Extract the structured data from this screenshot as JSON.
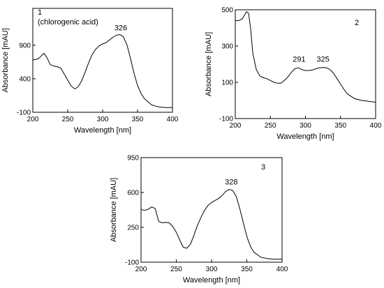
{
  "chart_data": [
    {
      "type": "line",
      "panel_label": "1",
      "annotation": "(chlorogenic acid)",
      "xlabel": "Wavelength [nm]",
      "ylabel": "Absorbance [mAU]",
      "xlim": [
        200,
        400
      ],
      "ylim": [
        -100,
        1450
      ],
      "xticks": [
        200,
        250,
        300,
        350,
        400
      ],
      "yticks": [
        -100,
        400,
        900
      ],
      "grid": false,
      "peak_labels": [
        {
          "x": 326,
          "y": 1060,
          "text": "326"
        }
      ],
      "series": [
        {
          "x": [
            200,
            205,
            208,
            212,
            216,
            220,
            225,
            230,
            235,
            240,
            245,
            250,
            255,
            260,
            265,
            270,
            275,
            280,
            285,
            290,
            295,
            300,
            305,
            310,
            315,
            320,
            325,
            330,
            335,
            340,
            345,
            350,
            355,
            360,
            370,
            380,
            390,
            400
          ],
          "y": [
            680,
            690,
            700,
            740,
            780,
            720,
            610,
            590,
            580,
            560,
            470,
            380,
            290,
            250,
            280,
            370,
            500,
            640,
            760,
            840,
            890,
            920,
            940,
            980,
            1020,
            1050,
            1060,
            1020,
            900,
            700,
            480,
            300,
            180,
            100,
            10,
            -20,
            -30,
            -30
          ]
        }
      ]
    },
    {
      "type": "line",
      "panel_label": "2",
      "xlabel": "Wavelength [nm]",
      "ylabel": "Absorbance [mAU]",
      "xlim": [
        200,
        400
      ],
      "ylim": [
        -100,
        500
      ],
      "xticks": [
        200,
        250,
        300,
        350,
        400
      ],
      "yticks": [
        -100,
        100,
        300,
        500
      ],
      "grid": false,
      "peak_labels": [
        {
          "x": 291,
          "y": 190,
          "text": "291"
        },
        {
          "x": 325,
          "y": 190,
          "text": "325"
        }
      ],
      "series": [
        {
          "x": [
            200,
            205,
            210,
            213,
            216,
            219,
            222,
            225,
            230,
            235,
            240,
            245,
            250,
            255,
            260,
            265,
            270,
            275,
            280,
            285,
            290,
            295,
            300,
            305,
            310,
            315,
            320,
            325,
            330,
            335,
            340,
            345,
            350,
            355,
            360,
            370,
            380,
            390,
            400
          ],
          "y": [
            440,
            440,
            450,
            470,
            490,
            480,
            390,
            260,
            170,
            135,
            125,
            120,
            110,
            100,
            95,
            95,
            110,
            130,
            155,
            175,
            180,
            170,
            165,
            165,
            168,
            175,
            180,
            182,
            180,
            170,
            150,
            120,
            90,
            60,
            35,
            10,
            0,
            -5,
            -10
          ]
        }
      ]
    },
    {
      "type": "line",
      "panel_label": "3",
      "xlabel": "Wavelength [nm]",
      "ylabel": "Absorbance [mAU]",
      "xlim": [
        200,
        400
      ],
      "ylim": [
        -100,
        950
      ],
      "xticks": [
        200,
        250,
        300,
        350,
        400
      ],
      "yticks": [
        -100,
        250,
        600,
        950
      ],
      "grid": false,
      "peak_labels": [
        {
          "x": 328,
          "y": 640,
          "text": "328"
        }
      ],
      "series": [
        {
          "x": [
            200,
            205,
            210,
            215,
            220,
            225,
            230,
            235,
            240,
            245,
            250,
            255,
            260,
            265,
            270,
            275,
            280,
            285,
            290,
            295,
            300,
            305,
            310,
            315,
            320,
            325,
            330,
            335,
            340,
            345,
            350,
            355,
            360,
            370,
            380,
            390,
            400
          ],
          "y": [
            430,
            420,
            430,
            455,
            440,
            310,
            295,
            300,
            295,
            260,
            200,
            120,
            50,
            40,
            80,
            170,
            270,
            350,
            420,
            470,
            500,
            520,
            540,
            570,
            610,
            630,
            620,
            560,
            440,
            300,
            160,
            60,
            0,
            -50,
            -65,
            -70,
            -70
          ]
        }
      ]
    }
  ]
}
